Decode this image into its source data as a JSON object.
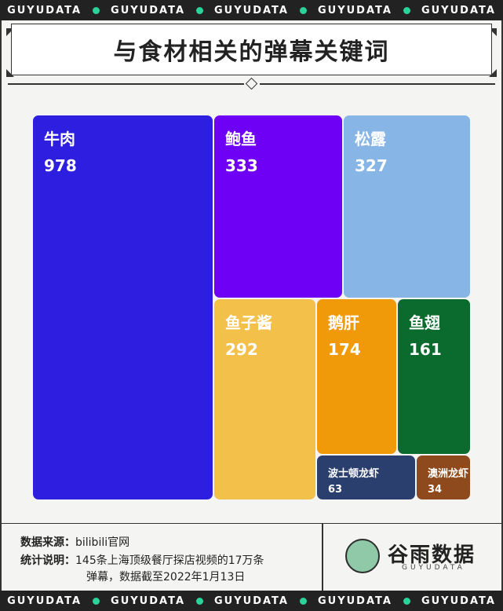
{
  "band_word": "GUYUDATA",
  "title": "与食材相关的弹幕关键词",
  "chart_data": {
    "type": "treemap",
    "title": "与食材相关的弹幕关键词",
    "items": [
      {
        "label": "牛肉",
        "value": 978,
        "color": "#2e1fe0"
      },
      {
        "label": "鲍鱼",
        "value": 333,
        "color": "#6e00f5"
      },
      {
        "label": "松露",
        "value": 327,
        "color": "#86b5e6"
      },
      {
        "label": "鱼子酱",
        "value": 292,
        "color": "#f3c04a"
      },
      {
        "label": "鹅肝",
        "value": 174,
        "color": "#f09a0a"
      },
      {
        "label": "鱼翅",
        "value": 161,
        "color": "#0b6a2e"
      },
      {
        "label": "波士顿龙虾",
        "value": 63,
        "color": "#2b3f6e"
      },
      {
        "label": "澳洲龙虾",
        "value": 34,
        "color": "#8e4a1c"
      }
    ]
  },
  "footer": {
    "source_key": "数据来源：",
    "source_val": "bilibili官网",
    "note_key": "统计说明：",
    "note_val_1": "145条上海顶级餐厅探店视频的17万条",
    "note_val_2": "弹幕，数据截至2022年1月13日",
    "logo_name": "谷雨数据",
    "logo_sub": "GUYUDATA"
  }
}
